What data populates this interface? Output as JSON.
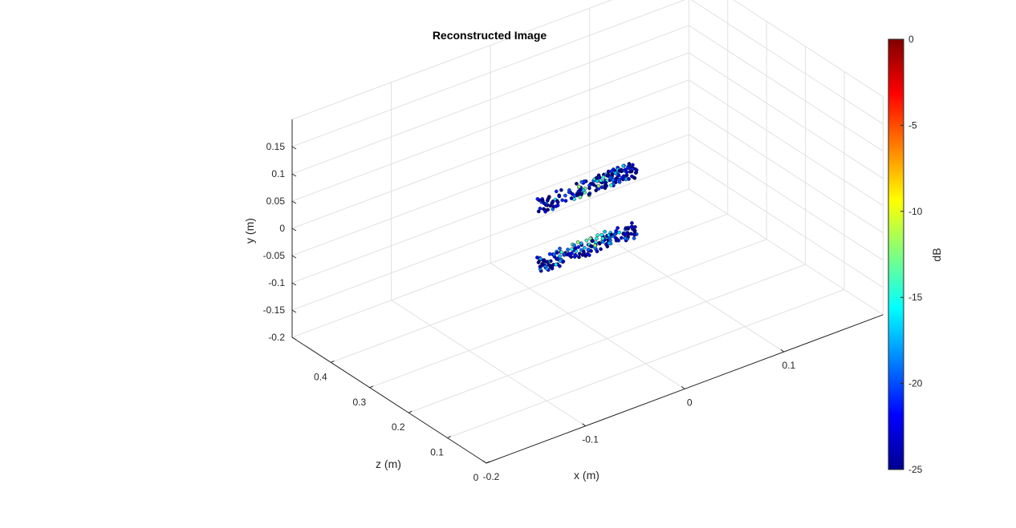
{
  "chart_data": {
    "type": "scatter",
    "title": "Reconstructed Image",
    "xlabel": "x (m)",
    "ylabel": "y (m)",
    "zlabel": "z (m)",
    "xlim": [
      -0.2,
      0.2
    ],
    "ylim": [
      -0.2,
      0.2
    ],
    "zlim": [
      0,
      0.5
    ],
    "x_ticks": [
      -0.2,
      -0.1,
      0,
      0.1
    ],
    "x_tick_labels": [
      "-0.2",
      "-0.1",
      "0",
      "0.1"
    ],
    "y_ticks": [
      -0.2,
      -0.15,
      -0.1,
      -0.05,
      0,
      0.05,
      0.1,
      0.15
    ],
    "y_tick_labels": [
      "-0.2",
      "-0.15",
      "-0.1",
      "-0.05",
      "0",
      "0.05",
      "0.1",
      "0.15"
    ],
    "z_ticks": [
      0,
      0.1,
      0.2,
      0.3,
      0.4
    ],
    "z_tick_labels": [
      "0",
      "0.1",
      "0.2",
      "0.3",
      "0.4"
    ],
    "grid": true,
    "view": "3-D isometric",
    "colormap": "jet",
    "colorbar": {
      "label": "dB",
      "limits": [
        -25,
        0
      ],
      "ticks": [
        0,
        -5,
        -10,
        -15,
        -20,
        -25
      ],
      "tick_labels": [
        "0",
        "-5",
        "-10",
        "-15",
        "-20",
        "-25"
      ],
      "placement": "right"
    },
    "clusters": [
      {
        "x_range": [
          -0.05,
          0.05
        ],
        "y_range": [
          0.03,
          0.08
        ],
        "z": 0.25,
        "db_range": [
          -25,
          -9
        ]
      },
      {
        "x_range": [
          -0.05,
          0.05
        ],
        "y_range": [
          -0.08,
          -0.03
        ],
        "z": 0.25,
        "db_range": [
          -25,
          -9
        ]
      }
    ]
  }
}
